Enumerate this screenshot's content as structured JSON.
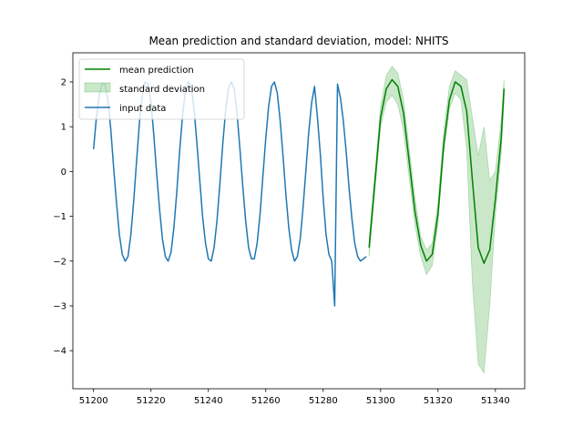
{
  "chart_data": {
    "type": "line",
    "title": "Mean prediction and standard deviation, model: NHITS",
    "xlabel": "",
    "ylabel": "",
    "xlim": [
      51192.8,
      51350.2
    ],
    "ylim": [
      -4.85,
      2.65
    ],
    "xticks": [
      51200,
      51220,
      51240,
      51260,
      51280,
      51300,
      51320,
      51340
    ],
    "yticks": [
      2,
      1,
      0,
      -1,
      -2,
      -3,
      -4
    ],
    "ytick_labels": [
      "2",
      "1",
      "0",
      "−1",
      "−2",
      "−3",
      "−4"
    ],
    "grid": false,
    "legend_position": "top-left",
    "series": [
      {
        "name": "mean prediction",
        "kind": "line",
        "color": "#008000",
        "x": [
          51296,
          51298,
          51300,
          51302,
          51304,
          51306,
          51308,
          51310,
          51312,
          51314,
          51316,
          51318,
          51320,
          51322,
          51324,
          51326,
          51328,
          51330,
          51332,
          51334,
          51336,
          51338,
          51340,
          51342,
          51343
        ],
        "y": [
          -1.7,
          -0.25,
          1.2,
          1.85,
          2.05,
          1.9,
          1.3,
          0.2,
          -0.9,
          -1.65,
          -2.0,
          -1.85,
          -0.95,
          0.6,
          1.6,
          2.0,
          1.9,
          1.35,
          -0.2,
          -1.7,
          -2.05,
          -1.75,
          -0.6,
          0.75,
          1.85
        ]
      },
      {
        "name": "standard deviation",
        "kind": "band",
        "color": "#2ca02c",
        "x": [
          51296,
          51298,
          51300,
          51302,
          51304,
          51306,
          51308,
          51310,
          51312,
          51314,
          51316,
          51318,
          51320,
          51322,
          51324,
          51326,
          51328,
          51330,
          51332,
          51334,
          51336,
          51338,
          51340,
          51342,
          51343
        ],
        "lower": [
          -1.9,
          -0.45,
          1.0,
          1.55,
          1.7,
          1.5,
          0.9,
          -0.15,
          -1.2,
          -1.9,
          -2.3,
          -2.1,
          -1.15,
          0.4,
          1.4,
          1.75,
          1.6,
          0.5,
          -2.5,
          -4.3,
          -4.5,
          -3.0,
          -0.95,
          0.4,
          1.55
        ],
        "upper": [
          -1.5,
          -0.05,
          1.45,
          2.15,
          2.35,
          2.2,
          1.6,
          0.5,
          -0.6,
          -1.45,
          -1.75,
          -1.6,
          -0.7,
          0.9,
          1.9,
          2.25,
          2.15,
          2.05,
          1.2,
          0.35,
          1.0,
          -0.2,
          0.0,
          1.15,
          2.05
        ]
      },
      {
        "name": "input data",
        "kind": "line",
        "color": "#1f77b4",
        "x": [
          51200,
          51201,
          51202,
          51203,
          51204,
          51205,
          51206,
          51207,
          51208,
          51209,
          51210,
          51211,
          51212,
          51213,
          51214,
          51215,
          51216,
          51217,
          51218,
          51219,
          51220,
          51221,
          51222,
          51223,
          51224,
          51225,
          51226,
          51227,
          51228,
          51229,
          51230,
          51231,
          51232,
          51233,
          51234,
          51235,
          51236,
          51237,
          51238,
          51239,
          51240,
          51241,
          51242,
          51243,
          51244,
          51245,
          51246,
          51247,
          51248,
          51249,
          51250,
          51251,
          51252,
          51253,
          51254,
          51255,
          51256,
          51257,
          51258,
          51259,
          51260,
          51261,
          51262,
          51263,
          51264,
          51265,
          51266,
          51267,
          51268,
          51269,
          51270,
          51271,
          51272,
          51273,
          51274,
          51275,
          51276,
          51277,
          51278,
          51279,
          51280,
          51281,
          51282,
          51283,
          51284,
          51285,
          51286,
          51287,
          51288,
          51289,
          51290,
          51291,
          51292,
          51293,
          51294,
          51295
        ],
        "y": [
          0.5,
          1.2,
          1.7,
          1.95,
          1.95,
          1.6,
          0.95,
          0.1,
          -0.7,
          -1.4,
          -1.85,
          -2.0,
          -1.9,
          -1.4,
          -0.65,
          0.25,
          1.1,
          1.7,
          2.0,
          1.95,
          1.55,
          0.8,
          -0.05,
          -0.85,
          -1.5,
          -1.9,
          -2.0,
          -1.8,
          -1.25,
          -0.45,
          0.45,
          1.25,
          1.8,
          2.0,
          1.9,
          1.4,
          0.65,
          -0.2,
          -1.0,
          -1.6,
          -1.95,
          -2.0,
          -1.7,
          -1.1,
          -0.3,
          0.6,
          1.35,
          1.85,
          2.0,
          1.85,
          1.3,
          0.5,
          -0.35,
          -1.1,
          -1.7,
          -1.95,
          -1.95,
          -1.6,
          -0.95,
          -0.1,
          0.75,
          1.45,
          1.9,
          2.0,
          1.75,
          1.15,
          0.35,
          -0.5,
          -1.25,
          -1.75,
          -2.0,
          -1.9,
          -1.5,
          -0.8,
          0.05,
          0.9,
          1.55,
          1.9,
          1.2,
          0.4,
          -0.6,
          -1.4,
          -1.85,
          -2.0,
          -3.0,
          1.95,
          1.65,
          1.15,
          0.45,
          -0.35,
          -1.05,
          -1.6,
          -1.9,
          -2.0,
          -1.95,
          -1.9
        ]
      }
    ]
  }
}
